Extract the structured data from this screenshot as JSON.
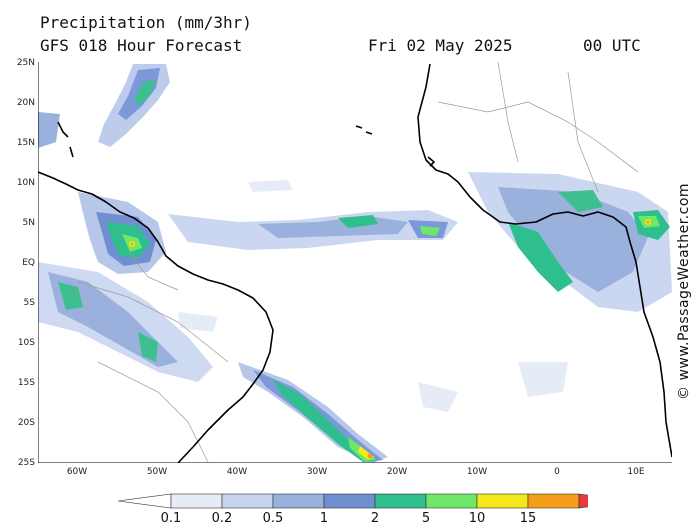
{
  "header": {
    "title": "Precipitation (mm/3hr)",
    "subtitle": "GFS 018 Hour Forecast",
    "date": "Fri 02 May 2025",
    "time": "00 UTC"
  },
  "map": {
    "lat_labels": [
      "25N",
      "20N",
      "15N",
      "10N",
      "5N",
      "EQ",
      "5S",
      "10S",
      "15S",
      "20S",
      "25S"
    ],
    "lon_labels": [
      "60W",
      "50W",
      "40W",
      "30W",
      "20W",
      "10W",
      "0",
      "10E"
    ],
    "colors": {
      "ocean": "#ffffff",
      "land": "#ffffff",
      "coast": "#000000",
      "border": "#999999"
    }
  },
  "legend": {
    "labels": [
      "0.1",
      "0.2",
      "0.5",
      "1",
      "2",
      "5",
      "10",
      "15"
    ],
    "colors": [
      "#ffffff",
      "#e6ecf7",
      "#c5d3ee",
      "#9ab0dd",
      "#6f8fd1",
      "#2fbf8f",
      "#6ee866",
      "#f4e71a",
      "#f59e1c",
      "#e83a3a"
    ]
  },
  "credit": "© www.PassageWeather.com"
}
